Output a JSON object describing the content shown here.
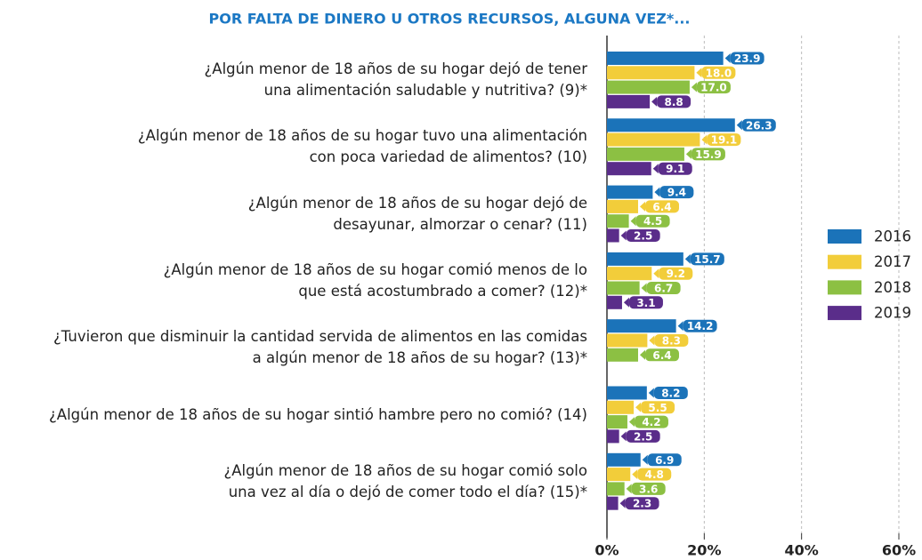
{
  "chart_data": {
    "type": "bar",
    "orientation": "horizontal",
    "title": "POR FALTA DE DINERO U OTROS RECURSOS, ALGUNA VEZ*...",
    "categories": [
      "¿Algún menor de 18 años de su hogar dejó de tener\nuna alimentación saludable y nutritiva? (9)*",
      "¿Algún menor de 18 años de su hogar tuvo una alimentación\ncon poca variedad de alimentos? (10)",
      "¿Algún menor de 18 años de su hogar dejó de\ndesayunar, almorzar o cenar? (11)",
      "¿Algún menor de 18 años de su hogar comió menos de lo\nque está acostumbrado a comer? (12)*",
      "¿Tuvieron que disminuir la cantidad servida de alimentos en las comidas\na algún menor de 18 años de su hogar? (13)*",
      "¿Algún menor de 18 años de su hogar sintió hambre pero no comió? (14)",
      "¿Algún menor de 18 años de su hogar comió solo\nuna vez al día o dejó de comer todo el día? (15)*"
    ],
    "series": [
      {
        "name": "2016",
        "color": "#1b73b9",
        "values": [
          23.9,
          26.3,
          9.4,
          15.7,
          14.2,
          8.2,
          6.9
        ],
        "value_labels": [
          "23.9",
          "26.3",
          "9.4",
          "15.7",
          "14.2",
          "8.2",
          "6.9"
        ]
      },
      {
        "name": "2017",
        "color": "#f2cd3a",
        "values": [
          18.0,
          19.1,
          6.4,
          9.2,
          8.3,
          5.5,
          4.8
        ],
        "value_labels": [
          "18.0",
          "19.1",
          "6.4",
          "9.2",
          "8.3",
          "5.5",
          "4.8"
        ]
      },
      {
        "name": "2018",
        "color": "#8cc043",
        "values": [
          17.0,
          15.9,
          4.5,
          6.7,
          6.4,
          4.2,
          3.6
        ],
        "value_labels": [
          "17.0",
          "15.9",
          "4.5",
          "6.7",
          "6.4",
          "4.2",
          "3.6"
        ]
      },
      {
        "name": "2019",
        "color": "#5a2d8a",
        "values": [
          8.8,
          9.1,
          2.5,
          3.1,
          null,
          2.5,
          2.3
        ],
        "value_labels": [
          "8.8",
          "9.1",
          "2.5",
          "3.1",
          null,
          "2.5",
          "2.3"
        ]
      }
    ],
    "xlim": [
      0,
      60
    ],
    "xticks": [
      {
        "value": 0,
        "label": "0%"
      },
      {
        "value": 20,
        "label": "20%"
      },
      {
        "value": 40,
        "label": "40%"
      },
      {
        "value": 60,
        "label": "60%"
      }
    ],
    "grid": true,
    "legend": "right"
  }
}
